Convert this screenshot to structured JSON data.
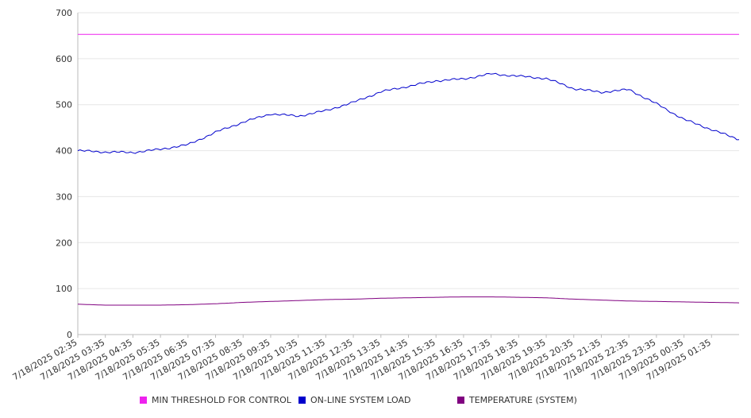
{
  "chart_data": {
    "type": "line",
    "title": "",
    "xlabel": "",
    "ylabel": "",
    "ylim": [
      0,
      700
    ],
    "yticks": [
      "0",
      "100",
      "200",
      "300",
      "400",
      "500",
      "600",
      "700"
    ],
    "x_tick_labels": [
      "7/18/2025 02:35",
      "7/18/2025 03:35",
      "7/18/2025 04:35",
      "7/18/2025 05:35",
      "7/18/2025 06:35",
      "7/18/2025 07:35",
      "7/18/2025 08:35",
      "7/18/2025 09:35",
      "7/18/2025 10:35",
      "7/18/2025 11:35",
      "7/18/2025 12:35",
      "7/18/2025 13:35",
      "7/18/2025 14:35",
      "7/18/2025 15:35",
      "7/18/2025 16:35",
      "7/18/2025 17:35",
      "7/18/2025 18:35",
      "7/18/2025 19:35",
      "7/18/2025 20:35",
      "7/18/2025 21:35",
      "7/18/2025 22:35",
      "7/18/2025 23:35",
      "7/19/2025 00:35",
      "7/19/2025 01:35"
    ],
    "grid": true,
    "legend_position": "bottom",
    "series": [
      {
        "name": "MIN THRESHOLD FOR CONTROL",
        "color": "#ee22ee",
        "values": [
          653,
          653,
          653,
          653,
          653,
          653,
          653,
          653,
          653,
          653,
          653,
          653,
          653,
          653,
          653,
          653,
          653,
          653,
          653,
          653,
          653,
          653,
          653,
          653,
          653
        ]
      },
      {
        "name": "ON-LINE SYSTEM LOAD",
        "color": "#0000cc",
        "values": [
          400,
          397,
          396,
          403,
          413,
          440,
          462,
          480,
          475,
          487,
          505,
          528,
          540,
          552,
          556,
          567,
          562,
          557,
          535,
          527,
          533,
          502,
          468,
          446,
          424
        ]
      },
      {
        "name": "TEMPERATURE (SYSTEM)",
        "color": "#800080",
        "values": [
          66,
          64,
          64,
          64,
          65,
          67,
          70,
          72,
          74,
          76,
          77,
          79,
          80,
          81,
          82,
          82,
          81,
          80,
          77,
          75,
          73,
          72,
          71,
          70,
          69
        ]
      }
    ]
  },
  "legend": {
    "items": [
      {
        "label": "MIN THRESHOLD FOR CONTROL",
        "color": "#ee22ee"
      },
      {
        "label": "ON-LINE SYSTEM LOAD",
        "color": "#0000cc"
      },
      {
        "label": "TEMPERATURE (SYSTEM)",
        "color": "#800080"
      }
    ]
  }
}
